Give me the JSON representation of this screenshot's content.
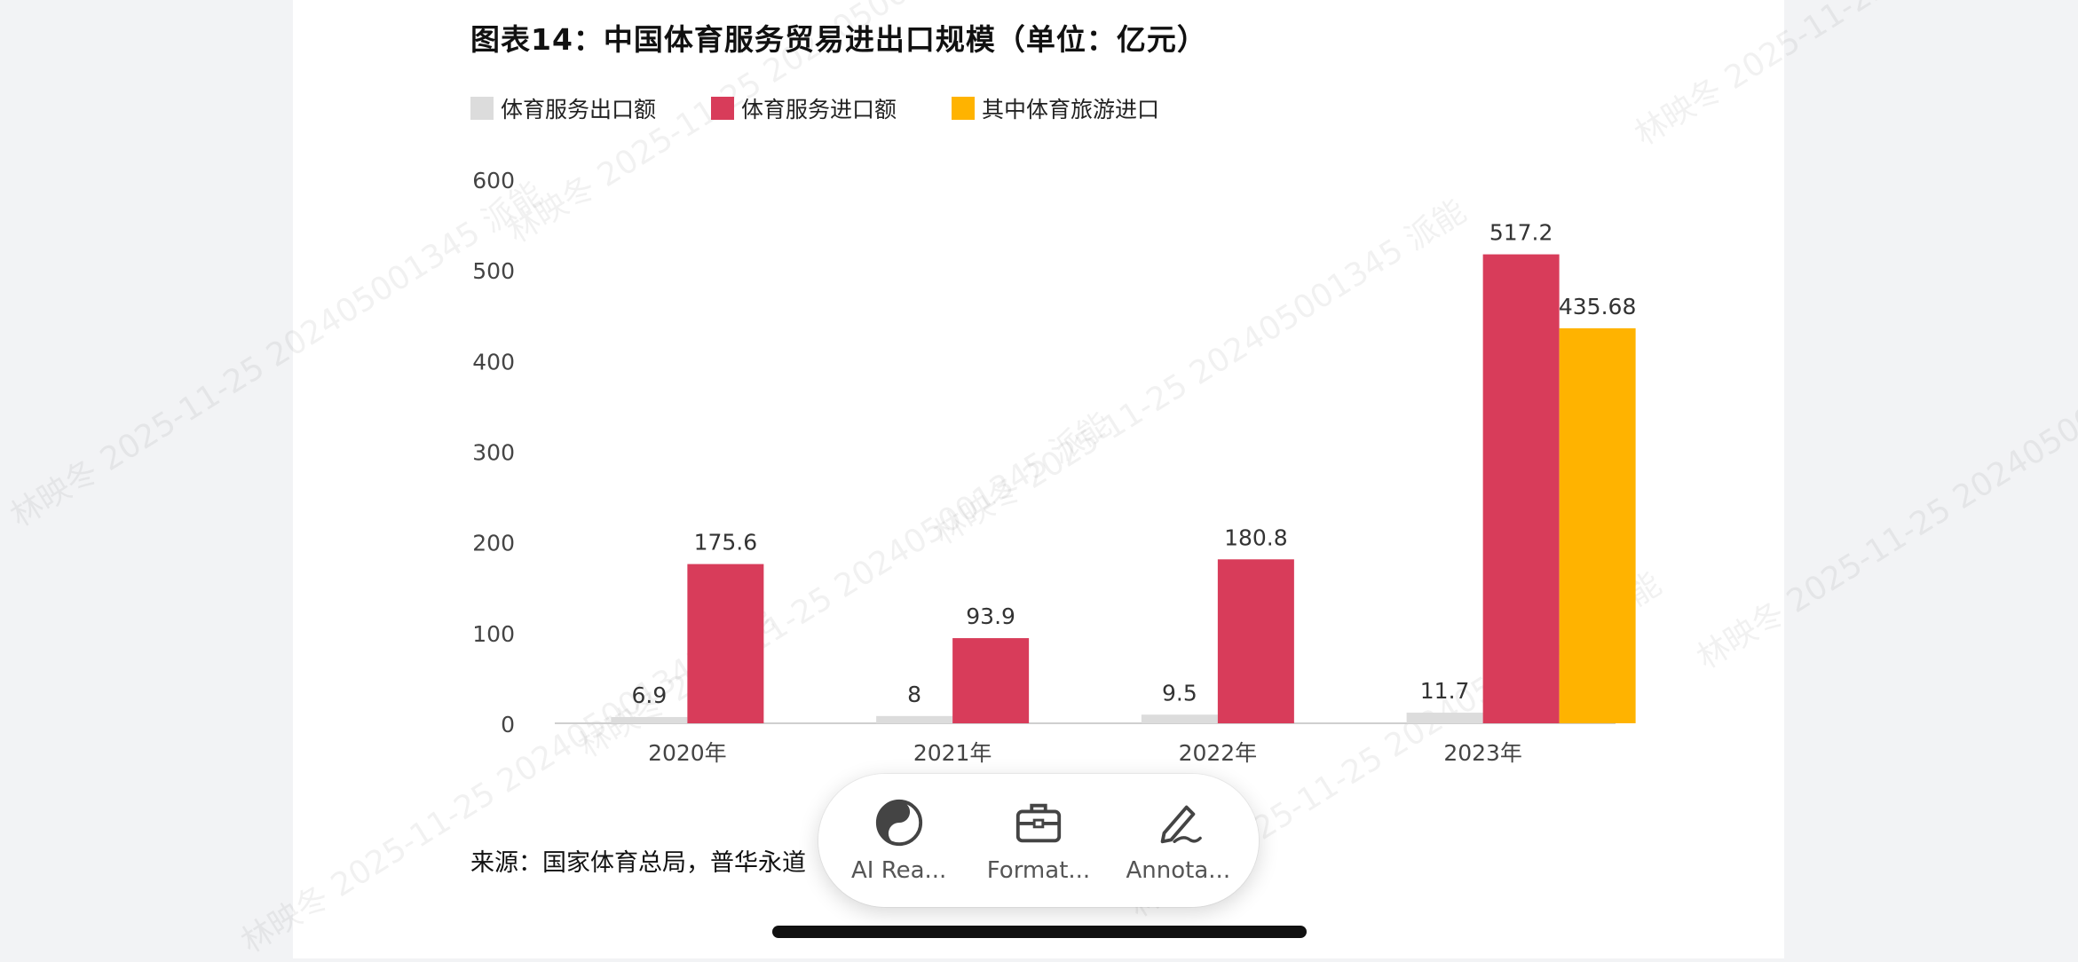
{
  "document": {
    "title": "图表14：中国体育服务贸易进出口规模（单位：亿元）",
    "source": "来源：国家体育总局，普华永道",
    "watermark": "林映冬 2025-11-25 202405001345 派能"
  },
  "legend": {
    "items": [
      {
        "label": "体育服务出口额",
        "color": "#dcdcdc"
      },
      {
        "label": "体育服务进口额",
        "color": "#d83c5a"
      },
      {
        "label": "其中体育旅游进口",
        "color": "#ffb300"
      }
    ]
  },
  "chart_data": {
    "type": "bar",
    "title": "图表14：中国体育服务贸易进出口规模（单位：亿元）",
    "categories": [
      "2020年",
      "2021年",
      "2022年",
      "2023年"
    ],
    "series": [
      {
        "name": "体育服务出口额",
        "values": [
          6.9,
          8,
          9.5,
          11.7
        ],
        "color": "#dcdcdc",
        "labels": [
          "6.9",
          "8",
          "9.5",
          "11.7"
        ]
      },
      {
        "name": "体育服务进口额",
        "values": [
          175.6,
          93.9,
          180.8,
          517.2
        ],
        "color": "#d83c5a",
        "labels": [
          "175.6",
          "93.9",
          "180.8",
          "517.2"
        ]
      },
      {
        "name": "其中体育旅游进口",
        "values": [
          null,
          null,
          null,
          435.68
        ],
        "color": "#ffb300",
        "labels": [
          null,
          null,
          null,
          "435.68"
        ]
      }
    ],
    "yticks": [
      0,
      100,
      200,
      300,
      400,
      500,
      600
    ],
    "ylim": [
      0,
      600
    ],
    "grid": false,
    "legend_position": "top-left"
  },
  "toolbar": {
    "items": [
      {
        "label": "AI Rea...",
        "icon": "ai-reading-icon"
      },
      {
        "label": "Format...",
        "icon": "toolbox-icon"
      },
      {
        "label": "Annota...",
        "icon": "pen-icon"
      }
    ]
  }
}
